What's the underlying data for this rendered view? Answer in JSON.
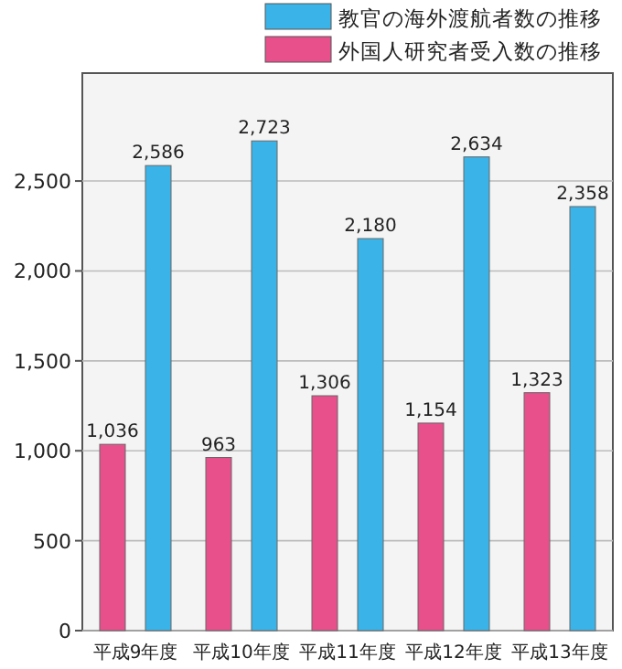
{
  "chart_data": {
    "type": "bar",
    "categories": [
      "平成9年度",
      "平成10年度",
      "平成11年度",
      "平成12年度",
      "平成13年度"
    ],
    "series": [
      {
        "name": "外国人研究者受入数の推移",
        "color": "#e8508c",
        "values": [
          1036,
          963,
          1306,
          1154,
          1323
        ],
        "value_labels": [
          "1,036",
          "963",
          "1,306",
          "1,154",
          "1,323"
        ]
      },
      {
        "name": "教官の海外渡航者数の推移",
        "color": "#3ab4e8",
        "values": [
          2586,
          2723,
          2180,
          2634,
          2358
        ],
        "value_labels": [
          "2,586",
          "2,723",
          "2,180",
          "2,634",
          "2,358"
        ]
      }
    ],
    "ylim": [
      0,
      3100
    ],
    "yticks": [
      {
        "value": 0,
        "label": "0"
      },
      {
        "value": 500,
        "label": "500"
      },
      {
        "value": 1000,
        "label": "1,000"
      },
      {
        "value": 1500,
        "label": "1,500"
      },
      {
        "value": 2000,
        "label": "2,000"
      },
      {
        "value": 2500,
        "label": "2,500"
      }
    ],
    "grid": "y",
    "legend": "top right"
  }
}
